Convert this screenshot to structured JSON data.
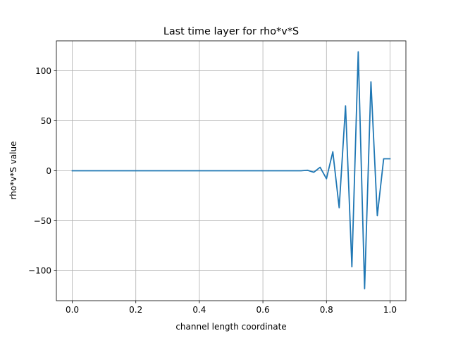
{
  "chart_data": {
    "type": "line",
    "title": "Last time layer for rho*v*S",
    "xlabel": "channel length coordinate",
    "ylabel": "rho*v*S value",
    "xlim": [
      -0.05,
      1.05
    ],
    "ylim": [
      -130,
      130
    ],
    "grid": true,
    "x_ticks": [
      0.0,
      0.2,
      0.4,
      0.6,
      0.8,
      1.0
    ],
    "x_tick_labels": [
      "0.0",
      "0.2",
      "0.4",
      "0.6",
      "0.8",
      "1.0"
    ],
    "y_ticks": [
      -100,
      -50,
      0,
      50,
      100
    ],
    "y_tick_labels": [
      "−100",
      "−50",
      "0",
      "50",
      "100"
    ],
    "series": [
      {
        "color": "#1f77b4",
        "x": [
          0.0,
          0.02,
          0.04,
          0.06,
          0.08,
          0.1,
          0.12,
          0.14,
          0.16,
          0.18,
          0.2,
          0.22,
          0.24,
          0.26,
          0.28,
          0.3,
          0.32,
          0.34,
          0.36,
          0.38,
          0.4,
          0.42,
          0.44,
          0.46,
          0.48,
          0.5,
          0.52,
          0.54,
          0.56,
          0.58,
          0.6,
          0.62,
          0.64,
          0.66,
          0.68,
          0.7,
          0.72,
          0.74,
          0.76,
          0.78,
          0.8,
          0.82,
          0.84,
          0.86,
          0.88,
          0.9,
          0.92,
          0.94,
          0.96,
          0.98,
          1.0
        ],
        "y": [
          0,
          0,
          0,
          0,
          0,
          0,
          0,
          0,
          0,
          0,
          0,
          0,
          0,
          0,
          0,
          0,
          0,
          0,
          0,
          0,
          0,
          0,
          0,
          0,
          0,
          0,
          0,
          0,
          0,
          0,
          0,
          0,
          0,
          0,
          0,
          0,
          0,
          0.5,
          -1.5,
          3.5,
          -8,
          19,
          -37,
          65,
          -96,
          119,
          -118,
          89,
          -45,
          12,
          12
        ]
      }
    ]
  }
}
